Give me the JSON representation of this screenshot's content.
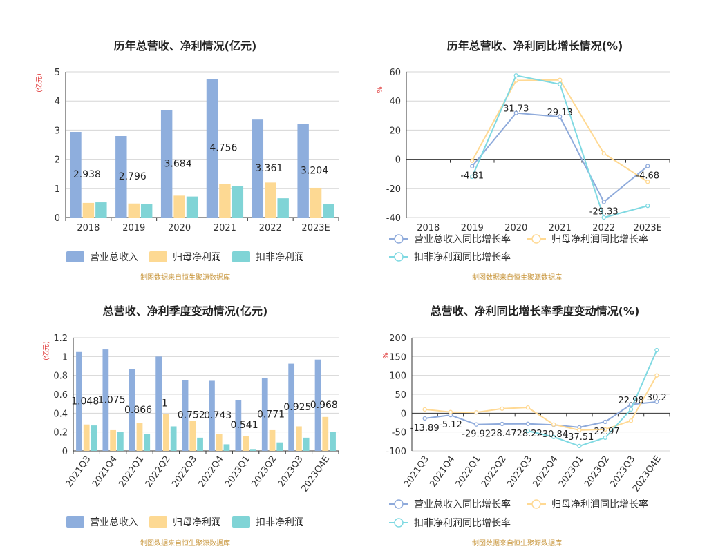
{
  "colors": {
    "revenue": "#8eaedd",
    "net_profit": "#fdd993",
    "deducted_profit": "#80d4d6",
    "revenue_line": "#8eaadb",
    "net_profit_line": "#ffd993",
    "deducted_profit_line": "#7fd9e2",
    "axis_unit": "#e03a3a",
    "source": "#c8963c"
  },
  "source_text": "制图数据来自恒生聚源数据库",
  "chart_data": [
    {
      "type": "bar",
      "title": "历年总营收、净利情况(亿元)",
      "unit": "(亿元)",
      "categories": [
        "2018",
        "2019",
        "2020",
        "2021",
        "2022",
        "2023E"
      ],
      "ylim": [
        0,
        5
      ],
      "yticks": [
        0,
        1,
        2,
        3,
        4,
        5
      ],
      "grid": true,
      "legend": "bottom",
      "series": [
        {
          "name": "营业总收入",
          "values": [
            2.938,
            2.796,
            3.684,
            4.756,
            3.361,
            3.204
          ],
          "labels": [
            "2.938",
            "2.796",
            "3.684",
            "4.756",
            "3.361",
            "3.204"
          ]
        },
        {
          "name": "归母净利润",
          "values": [
            0.5,
            0.48,
            0.75,
            1.16,
            1.2,
            1.02
          ]
        },
        {
          "name": "扣非净利润",
          "values": [
            0.52,
            0.46,
            0.72,
            1.09,
            0.66,
            0.45
          ]
        }
      ]
    },
    {
      "type": "line",
      "title": "历年总营收、净利同比增长情况(%)",
      "unit": "%",
      "categories": [
        "2018",
        "2019",
        "2020",
        "2021",
        "2022",
        "2023E"
      ],
      "ylim": [
        -40,
        60
      ],
      "yticks": [
        -40,
        -20,
        0,
        20,
        40,
        60
      ],
      "grid": true,
      "legend": "bottom",
      "series": [
        {
          "name": "营业总收入同比增长率",
          "values": [
            null,
            -4.81,
            31.73,
            29.13,
            -29.33,
            -4.68
          ],
          "labels": [
            "",
            "-4.81",
            "31.73",
            "29.13",
            "-29.33",
            "-4.68"
          ]
        },
        {
          "name": "归母净利润同比增长率",
          "values": [
            null,
            -1,
            54,
            54.5,
            4,
            -15.5
          ]
        },
        {
          "name": "扣非净利润同比增长率",
          "values": [
            null,
            -12,
            57.5,
            51.5,
            -40,
            -32
          ]
        }
      ]
    },
    {
      "type": "bar",
      "title": "总营收、净利季度变动情况(亿元)",
      "unit": "(亿元)",
      "categories": [
        "2021Q3",
        "2021Q4",
        "2022Q1",
        "2022Q2",
        "2022Q3",
        "2022Q4",
        "2023Q1",
        "2023Q2",
        "2023Q3",
        "2023Q4E"
      ],
      "ylim": [
        0,
        1.2
      ],
      "yticks": [
        0,
        0.2,
        0.4,
        0.6,
        0.8,
        1,
        1.2
      ],
      "grid": true,
      "legend": "bottom",
      "series": [
        {
          "name": "营业总收入",
          "values": [
            1.048,
            1.075,
            0.866,
            1,
            0.752,
            0.743,
            0.541,
            0.771,
            0.925,
            0.968
          ],
          "labels": [
            "1.048",
            "1.075",
            "0.866",
            "1",
            "0.752",
            "0.743",
            "0.541",
            "0.771",
            "0.925",
            "0.968"
          ]
        },
        {
          "name": "归母净利润",
          "values": [
            0.28,
            0.22,
            0.3,
            0.39,
            0.32,
            0.18,
            0.16,
            0.22,
            0.26,
            0.36
          ]
        },
        {
          "name": "扣非净利润",
          "values": [
            0.27,
            0.2,
            0.18,
            0.26,
            0.14,
            0.07,
            0.02,
            0.09,
            0.14,
            0.2
          ]
        }
      ]
    },
    {
      "type": "line",
      "title": "总营收、净利同比增长率季度变动情况(%)",
      "unit": "%",
      "categories": [
        "2021Q3",
        "2021Q4",
        "2022Q1",
        "2022Q2",
        "2022Q3",
        "2022Q4",
        "2023Q1",
        "2023Q2",
        "2023Q3",
        "2023Q4E"
      ],
      "ylim": [
        -100,
        200
      ],
      "yticks": [
        -100,
        -50,
        0,
        50,
        100,
        150,
        200
      ],
      "grid": true,
      "legend": "bottom",
      "series": [
        {
          "name": "营业总收入同比增长率",
          "values": [
            -13.89,
            -5.12,
            -29.92,
            -28.47,
            -28.22,
            -30.84,
            -37.51,
            -22.97,
            22.98,
            30.2
          ],
          "labels": [
            "-13.89",
            "-5.12",
            "-29.92",
            "-28.47",
            "-28.22",
            "-30.84",
            "-37.51",
            "-22.97",
            "22.98",
            "30.2"
          ]
        },
        {
          "name": "归母净利润同比增长率",
          "values": [
            10,
            3,
            2,
            12,
            15,
            -30,
            -45,
            -43,
            -20,
            100
          ]
        },
        {
          "name": "扣非净利润同比增长率",
          "values": [
            null,
            null,
            null,
            null,
            -47,
            -63,
            -87,
            -65,
            10,
            167
          ]
        }
      ]
    }
  ]
}
